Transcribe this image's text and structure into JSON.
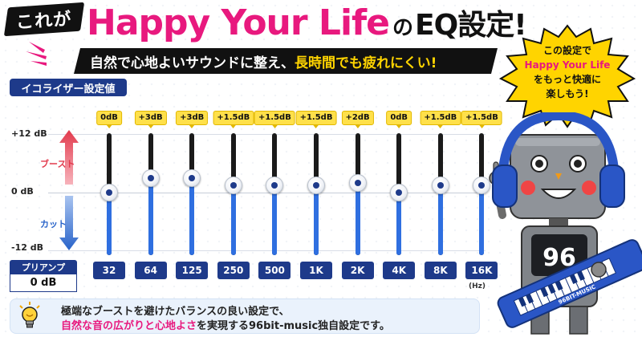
{
  "header": {
    "badge": "これが",
    "title_main": "Happy Your Life",
    "title_no": "の",
    "title_end": "EQ設定!",
    "subtitle_part1": "自然で心地よいサウンドに整え、",
    "subtitle_part2": "長時間でも疲れにくい!"
  },
  "eq": {
    "header": "イコライザー設定値",
    "axis": {
      "top": "+12 dB",
      "mid": "0 dB",
      "bottom": "-12 dB"
    },
    "boost_label": "ブースト",
    "cut_label": "カット",
    "hz_label": "(Hz)",
    "bands": [
      {
        "freq": "32",
        "tag": "0dB",
        "gain": 0
      },
      {
        "freq": "64",
        "tag": "+3dB",
        "gain": 3
      },
      {
        "freq": "125",
        "tag": "+3dB",
        "gain": 3
      },
      {
        "freq": "250",
        "tag": "+1.5dB",
        "gain": 1.5
      },
      {
        "freq": "500",
        "tag": "+1.5dB",
        "gain": 1.5
      },
      {
        "freq": "1K",
        "tag": "+1.5dB",
        "gain": 1.5
      },
      {
        "freq": "2K",
        "tag": "+2dB",
        "gain": 2
      },
      {
        "freq": "4K",
        "tag": "0dB",
        "gain": 0
      },
      {
        "freq": "8K",
        "tag": "+1.5dB",
        "gain": 1.5
      },
      {
        "freq": "16K",
        "tag": "+1.5dB",
        "gain": 1.5
      }
    ]
  },
  "preamp": {
    "label": "プリアンプ",
    "value": "0 dB"
  },
  "note": {
    "line1": "極端なブーストを避けたバランスの良い設定で、",
    "line2_pink": "自然な音の広がりと心地よさ",
    "line2_rest": "を実現する96bit-music独自設定です。"
  },
  "bubble": {
    "line1": "この設定で",
    "line2": "Happy Your Life",
    "line3": "をもっと快適に",
    "line4": "楽しもう!"
  },
  "robot": {
    "chest": "96",
    "keytar": "96BIT-MUSIC"
  },
  "colors": {
    "pink": "#e8197e",
    "navy": "#1e3a8a",
    "blue": "#2f6fe0",
    "yellow": "#ffe04a"
  }
}
